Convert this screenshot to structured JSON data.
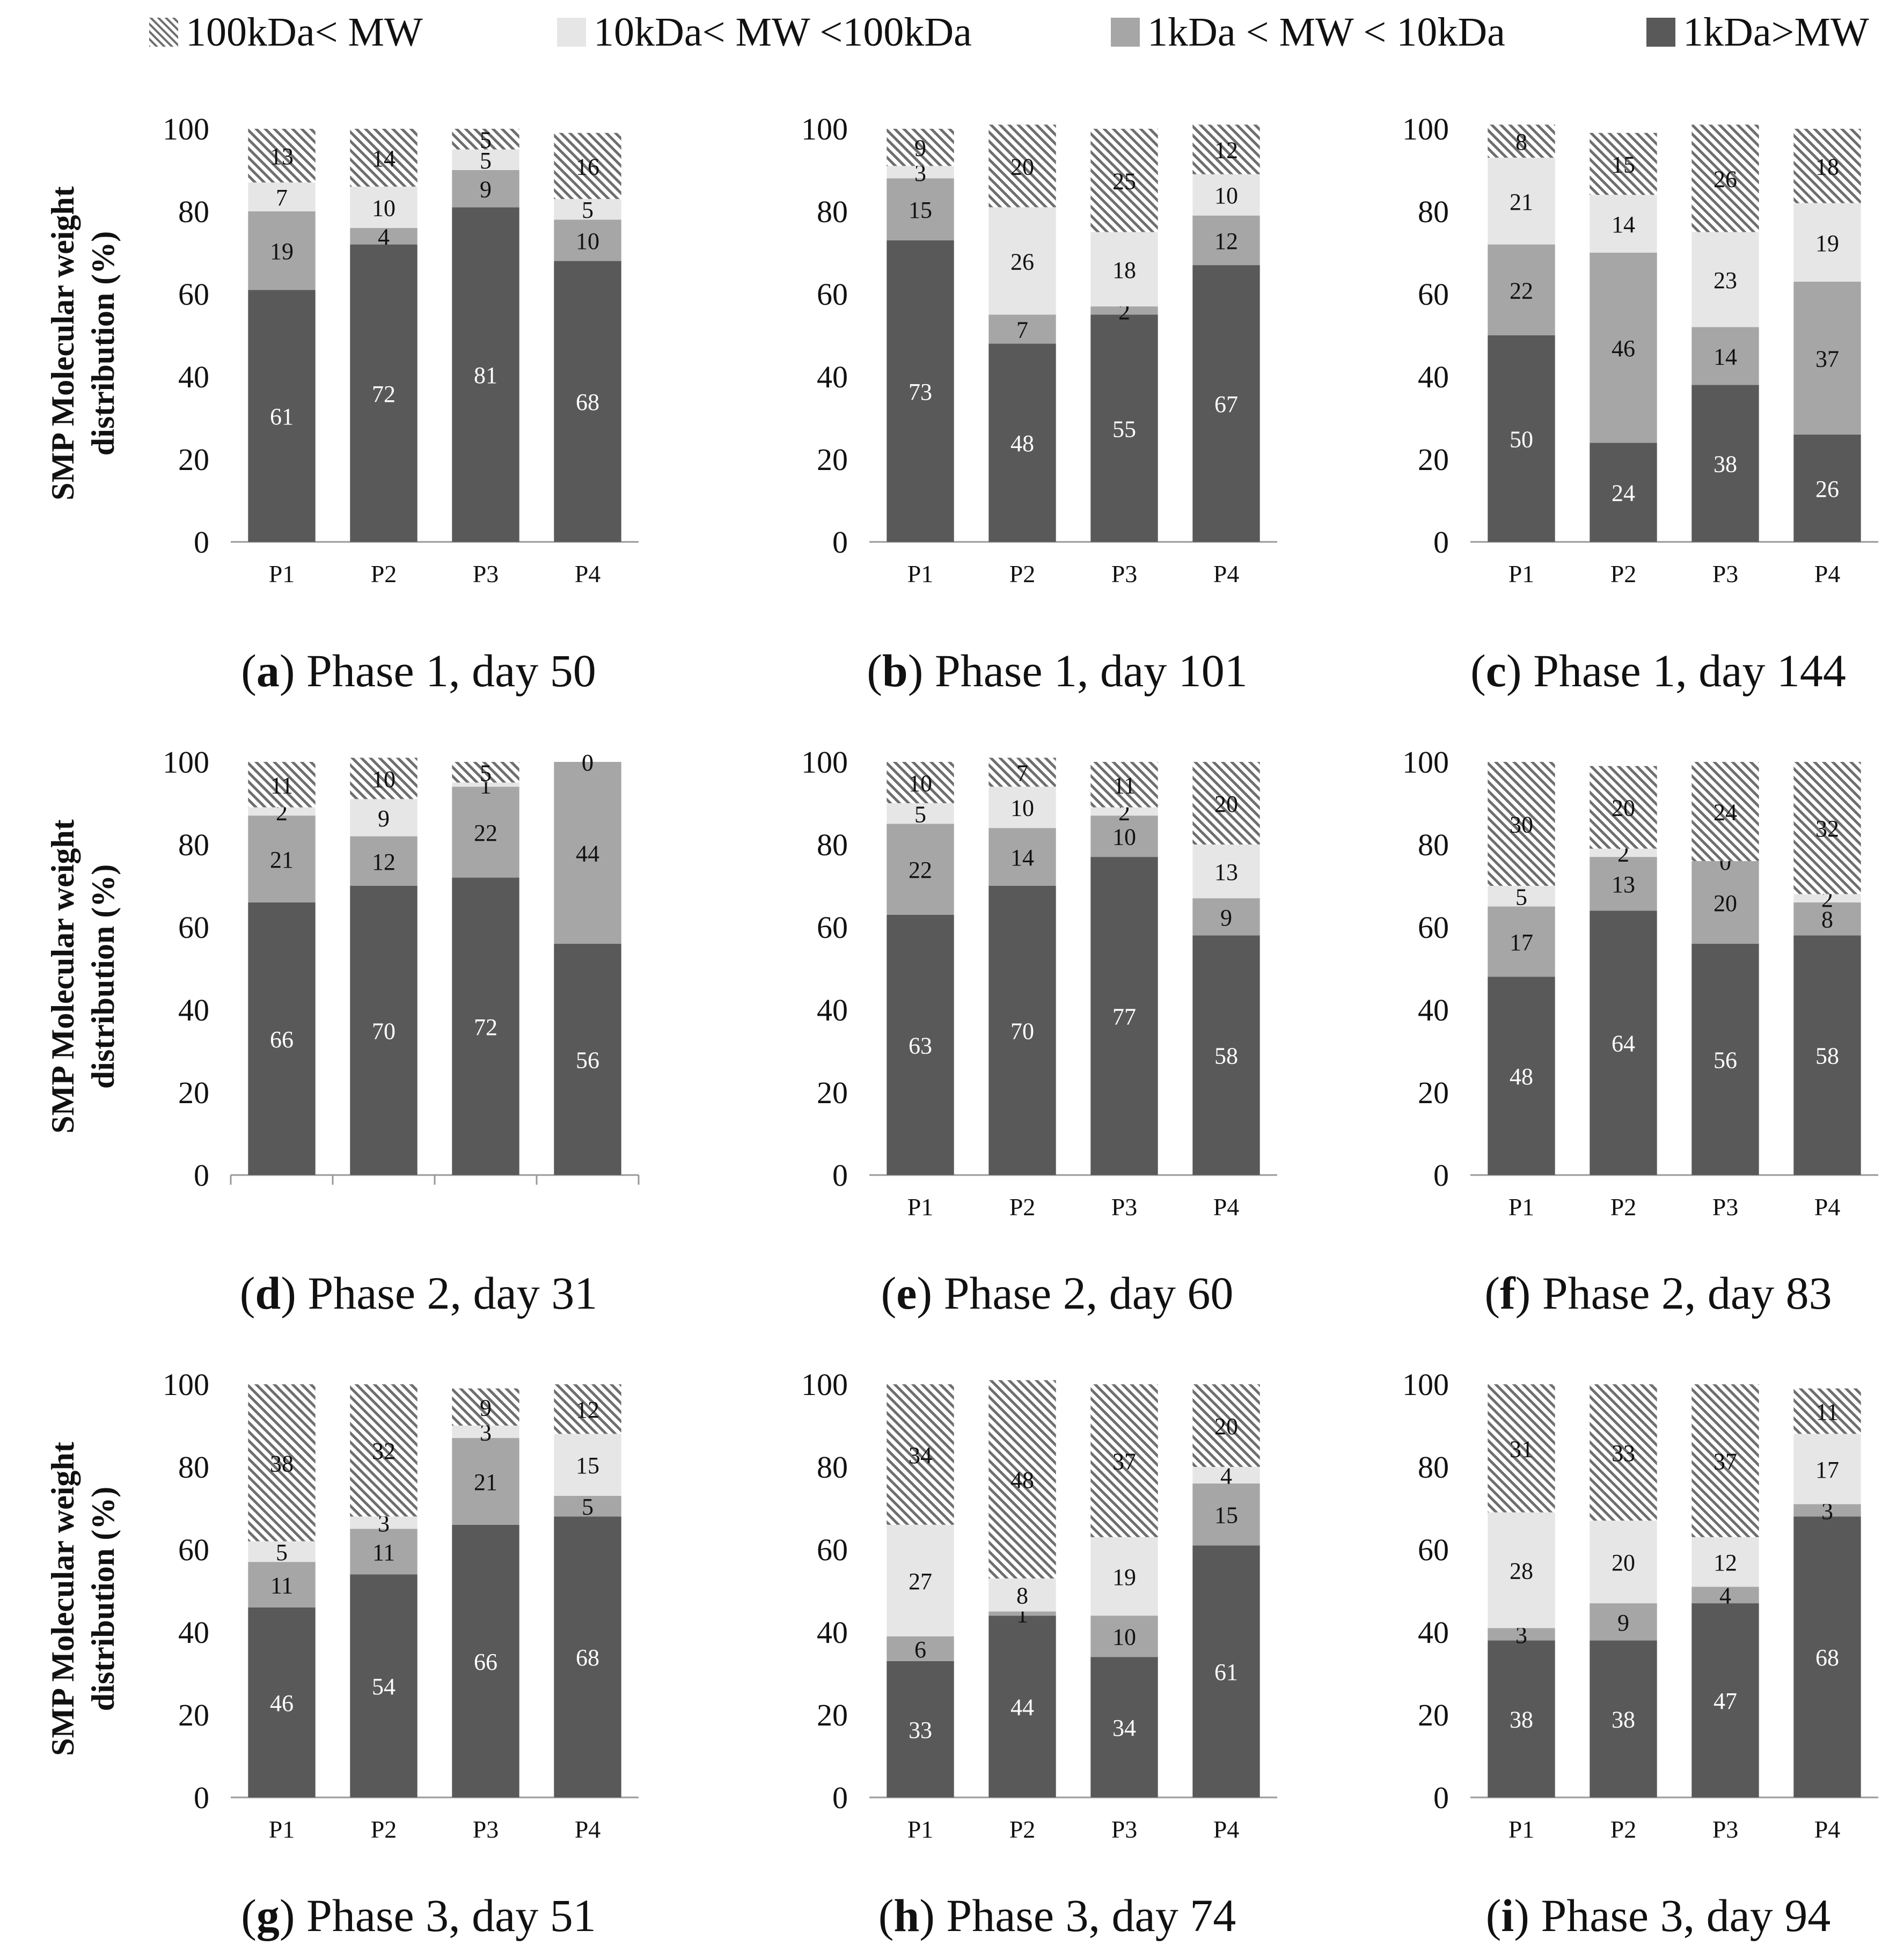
{
  "legend": [
    {
      "key": "gt100k",
      "label": "100kDa< MW",
      "color": "#hatch"
    },
    {
      "key": "k10_100",
      "label": "10kDa< MW <100kDa",
      "color": "#e6e6e6"
    },
    {
      "key": "k1_10",
      "label": "1kDa < MW < 10kDa",
      "color": "#a6a6a6"
    },
    {
      "key": "lt1k",
      "label": "1kDa>MW",
      "color": "#595959"
    }
  ],
  "colors": {
    "lt1k": "#595959",
    "k1_10": "#a6a6a6",
    "k10_100": "#e6e6e6",
    "hatch_fg": "#6e6e6e",
    "hatch_bg": "#ffffff",
    "label_dark": "#ffffff",
    "label_light": "#111111"
  },
  "ylabel": {
    "line1": "SMP Molecular weight",
    "line2": "distribution (%)"
  },
  "chart_data": [
    {
      "type": "bar",
      "stacked": true,
      "caption_letter": "a",
      "caption_text": "Phase 1, day 50",
      "categories": [
        "P1",
        "P2",
        "P3",
        "P4"
      ],
      "ylim": [
        0,
        100
      ],
      "yticks": [
        0,
        20,
        40,
        60,
        80,
        100
      ],
      "series": [
        {
          "name": "1kDa>MW",
          "values": [
            61,
            72,
            81,
            68
          ]
        },
        {
          "name": "1kDa < MW < 10kDa",
          "values": [
            19,
            4,
            9,
            10
          ]
        },
        {
          "name": "10kDa< MW <100kDa",
          "values": [
            7,
            10,
            5,
            5
          ]
        },
        {
          "name": "100kDa< MW",
          "values": [
            13,
            14,
            5,
            16
          ]
        }
      ]
    },
    {
      "type": "bar",
      "stacked": true,
      "caption_letter": "b",
      "caption_text": "Phase 1, day 101",
      "categories": [
        "P1",
        "P2",
        "P3",
        "P4"
      ],
      "ylim": [
        0,
        100
      ],
      "yticks": [
        0,
        20,
        40,
        60,
        80,
        100
      ],
      "series": [
        {
          "name": "1kDa>MW",
          "values": [
            73,
            48,
            55,
            67
          ]
        },
        {
          "name": "1kDa < MW < 10kDa",
          "values": [
            15,
            7,
            2,
            12
          ]
        },
        {
          "name": "10kDa< MW <100kDa",
          "values": [
            3,
            26,
            18,
            10
          ]
        },
        {
          "name": "100kDa< MW",
          "values": [
            9,
            20,
            25,
            12
          ]
        }
      ]
    },
    {
      "type": "bar",
      "stacked": true,
      "caption_letter": "c",
      "caption_text": "Phase 1, day 144",
      "categories": [
        "P1",
        "P2",
        "P3",
        "P4"
      ],
      "ylim": [
        0,
        100
      ],
      "yticks": [
        0,
        20,
        40,
        60,
        80,
        100
      ],
      "series": [
        {
          "name": "1kDa>MW",
          "values": [
            50,
            24,
            38,
            26
          ]
        },
        {
          "name": "1kDa < MW < 10kDa",
          "values": [
            22,
            46,
            14,
            37
          ]
        },
        {
          "name": "10kDa< MW <100kDa",
          "values": [
            21,
            14,
            23,
            19
          ]
        },
        {
          "name": "100kDa< MW",
          "values": [
            8,
            15,
            26,
            18
          ]
        }
      ]
    },
    {
      "type": "bar",
      "stacked": true,
      "caption_letter": "d",
      "caption_text": "Phase 2, day 31",
      "categories": [
        "",
        "",
        "",
        ""
      ],
      "ylim": [
        0,
        100
      ],
      "yticks": [
        0,
        20,
        40,
        60,
        80,
        100
      ],
      "series": [
        {
          "name": "1kDa>MW",
          "values": [
            66,
            70,
            72,
            56
          ]
        },
        {
          "name": "1kDa < MW < 10kDa",
          "values": [
            21,
            12,
            22,
            44
          ]
        },
        {
          "name": "10kDa< MW <100kDa",
          "values": [
            2,
            9,
            1,
            0
          ]
        },
        {
          "name": "100kDa< MW",
          "values": [
            11,
            10,
            5,
            0
          ]
        }
      ]
    },
    {
      "type": "bar",
      "stacked": true,
      "caption_letter": "e",
      "caption_text": "Phase 2, day 60",
      "categories": [
        "P1",
        "P2",
        "P3",
        "P4"
      ],
      "ylim": [
        0,
        100
      ],
      "yticks": [
        0,
        20,
        40,
        60,
        80,
        100
      ],
      "series": [
        {
          "name": "1kDa>MW",
          "values": [
            63,
            70,
            77,
            58
          ]
        },
        {
          "name": "1kDa < MW < 10kDa",
          "values": [
            22,
            14,
            10,
            9
          ]
        },
        {
          "name": "10kDa< MW <100kDa",
          "values": [
            5,
            10,
            2,
            13
          ]
        },
        {
          "name": "100kDa< MW",
          "values": [
            10,
            7,
            11,
            20
          ]
        }
      ]
    },
    {
      "type": "bar",
      "stacked": true,
      "caption_letter": "f",
      "caption_text": "Phase 2, day 83",
      "categories": [
        "P1",
        "P2",
        "P3",
        "P4"
      ],
      "ylim": [
        0,
        100
      ],
      "yticks": [
        0,
        20,
        40,
        60,
        80,
        100
      ],
      "series": [
        {
          "name": "1kDa>MW",
          "values": [
            48,
            64,
            56,
            58
          ]
        },
        {
          "name": "1kDa < MW < 10kDa",
          "values": [
            17,
            13,
            20,
            8
          ]
        },
        {
          "name": "10kDa< MW <100kDa",
          "values": [
            5,
            2,
            0,
            2
          ]
        },
        {
          "name": "100kDa< MW",
          "values": [
            30,
            20,
            24,
            32
          ]
        }
      ]
    },
    {
      "type": "bar",
      "stacked": true,
      "caption_letter": "g",
      "caption_text": "Phase 3, day 51",
      "categories": [
        "P1",
        "P2",
        "P3",
        "P4"
      ],
      "ylim": [
        0,
        100
      ],
      "yticks": [
        0,
        20,
        40,
        60,
        80,
        100
      ],
      "series": [
        {
          "name": "1kDa>MW",
          "values": [
            46,
            54,
            66,
            68
          ]
        },
        {
          "name": "1kDa < MW < 10kDa",
          "values": [
            11,
            11,
            21,
            5
          ]
        },
        {
          "name": "10kDa< MW <100kDa",
          "values": [
            5,
            3,
            3,
            15
          ]
        },
        {
          "name": "100kDa< MW",
          "values": [
            38,
            32,
            9,
            12
          ]
        }
      ]
    },
    {
      "type": "bar",
      "stacked": true,
      "caption_letter": "h",
      "caption_text": "Phase 3, day 74",
      "categories": [
        "P1",
        "P2",
        "P3",
        "P4"
      ],
      "ylim": [
        0,
        100
      ],
      "yticks": [
        0,
        20,
        40,
        60,
        80,
        100
      ],
      "series": [
        {
          "name": "1kDa>MW",
          "values": [
            33,
            44,
            34,
            61
          ]
        },
        {
          "name": "1kDa < MW < 10kDa",
          "values": [
            6,
            1,
            10,
            15
          ]
        },
        {
          "name": "10kDa< MW <100kDa",
          "values": [
            27,
            8,
            19,
            4
          ]
        },
        {
          "name": "100kDa< MW",
          "values": [
            34,
            48,
            37,
            20
          ]
        }
      ]
    },
    {
      "type": "bar",
      "stacked": true,
      "caption_letter": "i",
      "caption_text": "Phase 3, day 94",
      "categories": [
        "P1",
        "P2",
        "P3",
        "P4"
      ],
      "ylim": [
        0,
        100
      ],
      "yticks": [
        0,
        20,
        40,
        60,
        80,
        100
      ],
      "series": [
        {
          "name": "1kDa>MW",
          "values": [
            38,
            38,
            47,
            68
          ]
        },
        {
          "name": "1kDa < MW < 10kDa",
          "values": [
            3,
            9,
            4,
            3
          ]
        },
        {
          "name": "10kDa< MW <100kDa",
          "values": [
            28,
            20,
            12,
            17
          ]
        },
        {
          "name": "100kDa< MW",
          "values": [
            31,
            33,
            37,
            11
          ]
        }
      ]
    }
  ]
}
